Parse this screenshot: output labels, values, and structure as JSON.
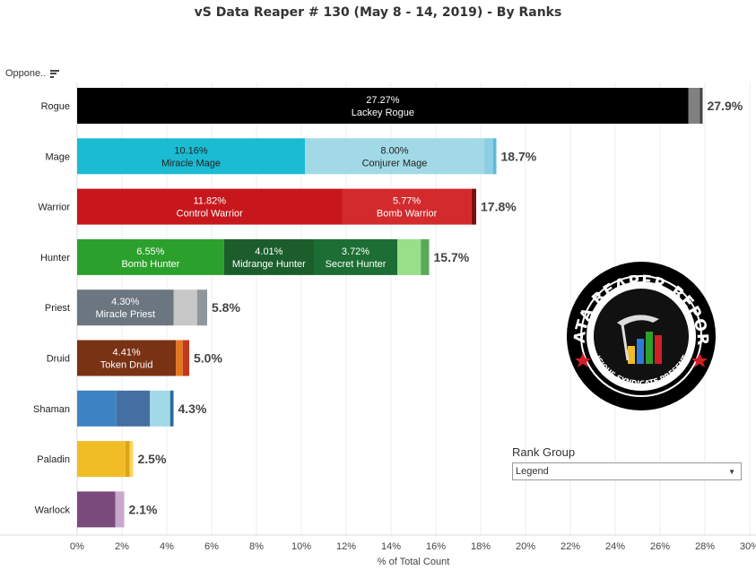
{
  "title": "vS Data Reaper #  130 (May 8 - 14, 2019) - By Ranks",
  "header": {
    "label": "Oppone.."
  },
  "rank_group": {
    "title": "Rank Group",
    "selected": "Legend"
  },
  "logo": {
    "text_top": "DATA REAPER REPORT",
    "text_bottom": "VICIOUS SYNDICATE PRESENTS"
  },
  "chart_data": {
    "type": "bar",
    "orientation": "horizontal",
    "stacked": true,
    "xlabel": "% of Total Count",
    "xlim": [
      0,
      30
    ],
    "xticks": [
      "0%",
      "2%",
      "4%",
      "6%",
      "8%",
      "10%",
      "12%",
      "14%",
      "16%",
      "18%",
      "20%",
      "22%",
      "24%",
      "26%",
      "28%",
      "30%"
    ],
    "grid": true,
    "categories": [
      "Rogue",
      "Mage",
      "Warrior",
      "Hunter",
      "Priest",
      "Druid",
      "Shaman",
      "Paladin",
      "Warlock"
    ],
    "totals": [
      "27.9%",
      "18.7%",
      "17.8%",
      "15.7%",
      "5.8%",
      "5.0%",
      "4.3%",
      "2.5%",
      "2.1%"
    ],
    "bars": [
      {
        "category": "Rogue",
        "segments": [
          {
            "value": 27.27,
            "label": "27.27%",
            "name": "Lackey Rogue",
            "color": "#000000"
          },
          {
            "value": 0.5,
            "color": "#808080"
          },
          {
            "value": 0.13,
            "color": "#444444"
          }
        ]
      },
      {
        "category": "Mage",
        "segments": [
          {
            "value": 10.16,
            "label": "10.16%",
            "name": "Miracle Mage",
            "color": "#1bbcd3",
            "dark": true
          },
          {
            "value": 8.0,
            "label": "8.00%",
            "name": "Conjurer Mage",
            "color": "#a2d9e7",
            "dark": true
          },
          {
            "value": 0.4,
            "color": "#8ccfe2"
          },
          {
            "value": 0.14,
            "color": "#5fb8d8"
          }
        ]
      },
      {
        "category": "Warrior",
        "segments": [
          {
            "value": 11.82,
            "label": "11.82%",
            "name": "Control Warrior",
            "color": "#c8161d"
          },
          {
            "value": 5.77,
            "label": "5.77%",
            "name": "Bomb Warrior",
            "color": "#d32a2e"
          },
          {
            "value": 0.21,
            "color": "#7d0f12"
          }
        ]
      },
      {
        "category": "Hunter",
        "segments": [
          {
            "value": 6.55,
            "label": "6.55%",
            "name": "Bomb Hunter",
            "color": "#2ca02c"
          },
          {
            "value": 4.01,
            "label": "4.01%",
            "name": "Midrange Hunter",
            "color": "#1b5e2b"
          },
          {
            "value": 3.72,
            "label": "3.72%",
            "name": "Secret Hunter",
            "color": "#1d6e34"
          },
          {
            "value": 1.05,
            "color": "#98df8a"
          },
          {
            "value": 0.37,
            "color": "#5aa85a"
          }
        ]
      },
      {
        "category": "Priest",
        "segments": [
          {
            "value": 4.3,
            "label": "4.30%",
            "name": "Miracle Priest",
            "color": "#6b7680"
          },
          {
            "value": 1.05,
            "color": "#c7c7c7"
          },
          {
            "value": 0.45,
            "color": "#8f979c"
          }
        ]
      },
      {
        "category": "Druid",
        "segments": [
          {
            "value": 4.41,
            "label": "4.41%",
            "name": "Token Druid",
            "color": "#7a3214"
          },
          {
            "value": 0.3,
            "color": "#e8761c"
          },
          {
            "value": 0.29,
            "color": "#c1381b"
          }
        ]
      },
      {
        "category": "Shaman",
        "segments": [
          {
            "value": 1.75,
            "color": "#3b84c1"
          },
          {
            "value": 1.5,
            "color": "#456fa3"
          },
          {
            "value": 0.9,
            "color": "#a2d9e7"
          },
          {
            "value": 0.15,
            "color": "#2b6a9e"
          }
        ]
      },
      {
        "category": "Paladin",
        "segments": [
          {
            "value": 2.15,
            "color": "#f0bd27"
          },
          {
            "value": 0.2,
            "color": "#e1a316"
          },
          {
            "value": 0.15,
            "color": "#f7d660"
          }
        ]
      },
      {
        "category": "Warlock",
        "segments": [
          {
            "value": 1.7,
            "color": "#7b4a7d"
          },
          {
            "value": 0.4,
            "color": "#c8a8cb"
          }
        ]
      }
    ]
  }
}
